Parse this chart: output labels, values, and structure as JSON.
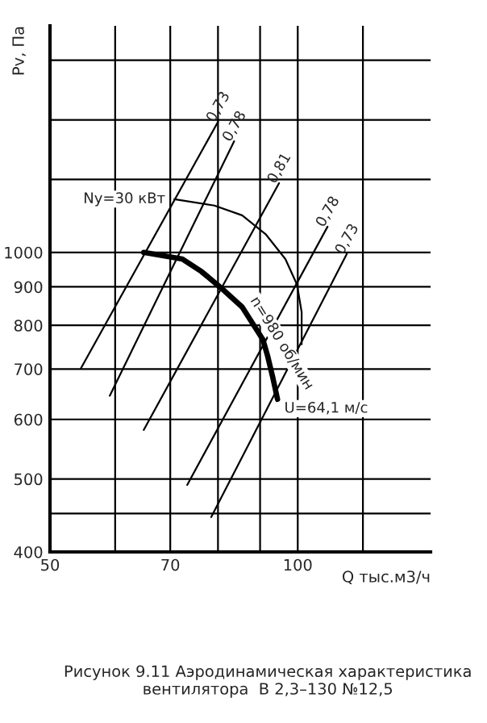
{
  "chart_data": {
    "type": "line",
    "log": "xy",
    "xlabel": "Q тыс.м3/ч",
    "ylabel": "Pv, Па",
    "xlim": [
      50,
      145
    ],
    "ylim": [
      400,
      2000
    ],
    "xticks": [
      50,
      {
        "value": 60,
        "label": null
      },
      70,
      {
        "value": 80,
        "label": null
      },
      {
        "value": 90,
        "label": null
      },
      100,
      {
        "value": 120,
        "label": null
      }
    ],
    "yticks": [
      400,
      {
        "value": 450,
        "label": null
      },
      500,
      600,
      700,
      800,
      900,
      1000,
      {
        "value": 1250,
        "label": null
      },
      {
        "value": 1500,
        "label": null
      },
      {
        "value": 1800,
        "label": null
      }
    ],
    "grid": true,
    "series": [
      {
        "color": "#000000",
        "x": [
          65.0,
          72.4,
          76.4,
          80.7,
          85.6,
          90.7,
          91.9,
          93.2,
          94.5
        ],
        "values": [
          1000,
          980,
          943,
          897,
          846,
          766,
          729,
          684,
          638
        ]
      },
      {
        "color": "#000000",
        "x": [
          70.8,
          79.2,
          85.6,
          91.5,
          96.6,
          99.8,
          101.1,
          101.1
        ],
        "values": [
          1177,
          1154,
          1120,
          1056,
          980,
          906,
          833,
          755
        ]
      },
      {
        "color": "#000000",
        "x": [
          54.5,
          80.0
        ],
        "values": [
          701,
          1491
        ]
      },
      {
        "color": "#000000",
        "x": [
          59.1,
          83.7
        ],
        "values": [
          645,
          1405
        ]
      },
      {
        "color": "#000000",
        "x": [
          65.0,
          94.9
        ],
        "values": [
          581,
          1236
        ]
      },
      {
        "color": "#000000",
        "x": [
          73.4,
          108.7
        ],
        "values": [
          491,
          1082
        ]
      },
      {
        "color": "#000000",
        "x": [
          78.5,
          114.7
        ],
        "values": [
          445,
          995
        ]
      }
    ],
    "annotations": [
      {
        "text": "Nу=30 кВт",
        "x": 70.8,
        "y": 1177
      },
      {
        "text": "n=980 об/мин",
        "x": 85.6,
        "y": 846
      },
      {
        "text": "U=64,1 м/с",
        "x": 94.5,
        "y": 638
      },
      {
        "text": "0,73",
        "x": 80.0,
        "y": 1491
      },
      {
        "text": "0,78",
        "x": 83.7,
        "y": 1405
      },
      {
        "text": "0,81",
        "x": 94.9,
        "y": 1236
      },
      {
        "text": "0,78",
        "x": 108.7,
        "y": 1082
      },
      {
        "text": "0,73",
        "x": 114.7,
        "y": 995
      },
      "Рисунок 9.11 Аэродинамическая характеристика вентилятора  В 2,3–130 №12,5"
    ]
  }
}
